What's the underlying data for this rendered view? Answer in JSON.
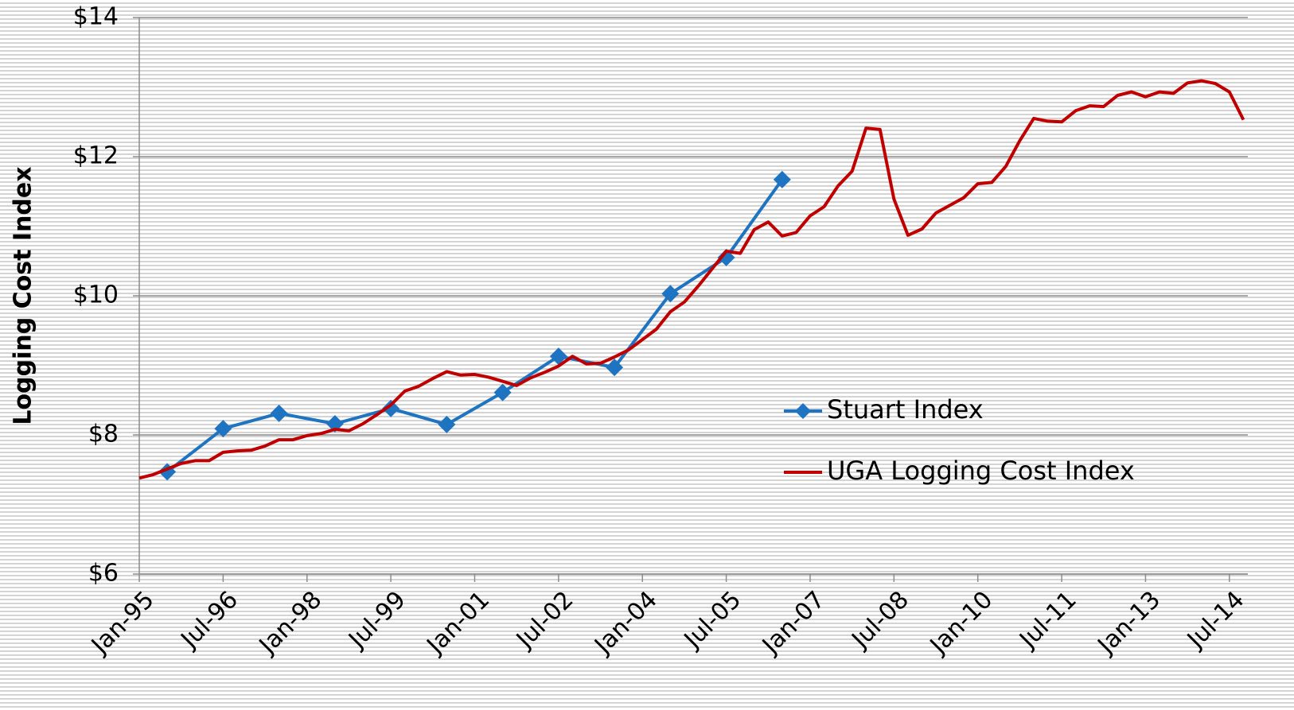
{
  "chart_data": {
    "type": "line",
    "y_label": "Logging Cost Index",
    "xlim": [
      1995,
      2014.83
    ],
    "ylim": [
      6,
      14
    ],
    "xticks": [
      {
        "value": 1995,
        "label": "Jan-95"
      },
      {
        "value": 1996.5,
        "label": "Jul-96"
      },
      {
        "value": 1998,
        "label": "Jan-98"
      },
      {
        "value": 1999.5,
        "label": "Jul-99"
      },
      {
        "value": 2001,
        "label": "Jan-01"
      },
      {
        "value": 2002.5,
        "label": "Jul-02"
      },
      {
        "value": 2004,
        "label": "Jan-04"
      },
      {
        "value": 2005.5,
        "label": "Jul-05"
      },
      {
        "value": 2007,
        "label": "Jan-07"
      },
      {
        "value": 2008.5,
        "label": "Jul-08"
      },
      {
        "value": 2010,
        "label": "Jan-10"
      },
      {
        "value": 2011.5,
        "label": "Jul-11"
      },
      {
        "value": 2013,
        "label": "Jan-13"
      },
      {
        "value": 2014.5,
        "label": "Jul-14"
      }
    ],
    "yticks": [
      {
        "value": 6,
        "label": "$6"
      },
      {
        "value": 8,
        "label": "$8"
      },
      {
        "value": 10,
        "label": "$10"
      },
      {
        "value": 12,
        "label": "$12"
      },
      {
        "value": 14,
        "label": "$14"
      }
    ],
    "grid": true,
    "legend": "right",
    "series": [
      {
        "name": "Stuart Index",
        "color": "#1f74c1",
        "marker": "diamond",
        "x": [
          1995.5,
          1996.5,
          1997.5,
          1998.5,
          1999.5,
          2000.5,
          2001.5,
          2002.5,
          2003.5,
          2004.5,
          2005.5,
          2006.5
        ],
        "values": [
          7.47,
          8.09,
          8.31,
          8.16,
          8.38,
          8.15,
          8.61,
          9.13,
          8.97,
          10.03,
          10.55,
          11.67
        ]
      },
      {
        "name": "UGA Logging Cost Index",
        "color": "#c00000",
        "marker": "none",
        "x": [
          1995,
          1995.25,
          1995.5,
          1995.75,
          1996,
          1996.25,
          1996.5,
          1996.75,
          1997,
          1997.25,
          1997.5,
          1997.75,
          1998,
          1998.25,
          1998.5,
          1998.75,
          1999,
          1999.25,
          1999.5,
          1999.75,
          2000,
          2000.25,
          2000.5,
          2000.75,
          2001,
          2001.25,
          2001.5,
          2001.75,
          2002,
          2002.25,
          2002.5,
          2002.75,
          2003,
          2003.25,
          2003.5,
          2003.75,
          2004,
          2004.25,
          2004.5,
          2004.75,
          2005,
          2005.25,
          2005.5,
          2005.75,
          2006,
          2006.25,
          2006.5,
          2006.75,
          2007,
          2007.25,
          2007.5,
          2007.75,
          2008,
          2008.25,
          2008.5,
          2008.75,
          2009,
          2009.25,
          2009.5,
          2009.75,
          2010,
          2010.25,
          2010.5,
          2010.75,
          2011,
          2011.25,
          2011.5,
          2011.75,
          2012,
          2012.25,
          2012.5,
          2012.75,
          2013,
          2013.25,
          2013.5,
          2013.75,
          2014,
          2014.25,
          2014.5,
          2014.75
        ],
        "values": [
          7.38,
          7.43,
          7.51,
          7.59,
          7.63,
          7.63,
          7.75,
          7.77,
          7.78,
          7.84,
          7.93,
          7.93,
          7.99,
          8.02,
          8.08,
          8.06,
          8.16,
          8.29,
          8.43,
          8.63,
          8.7,
          8.81,
          8.91,
          8.86,
          8.87,
          8.83,
          8.77,
          8.71,
          8.82,
          8.9,
          8.99,
          9.13,
          9.02,
          9.03,
          9.12,
          9.22,
          9.37,
          9.52,
          9.77,
          9.91,
          10.14,
          10.39,
          10.64,
          10.61,
          10.95,
          11.06,
          10.86,
          10.91,
          11.15,
          11.28,
          11.58,
          11.79,
          12.41,
          12.39,
          11.39,
          10.87,
          10.96,
          11.19,
          11.3,
          11.41,
          11.61,
          11.63,
          11.86,
          12.23,
          12.55,
          12.51,
          12.5,
          12.66,
          12.73,
          12.72,
          12.88,
          12.93,
          12.86,
          12.93,
          12.91,
          13.06,
          13.09,
          13.05,
          12.93,
          12.53
        ]
      }
    ]
  }
}
